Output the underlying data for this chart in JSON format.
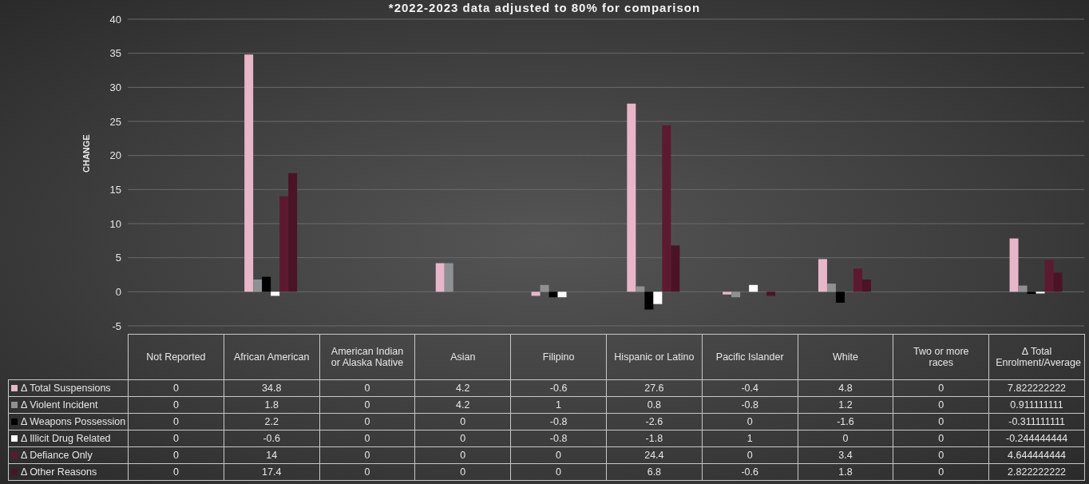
{
  "chart_data": {
    "type": "bar",
    "title": "*2022-2023 data adjusted to 80% for comparison",
    "ylabel": "CHANGE",
    "categories": [
      "Not Reported",
      "African American",
      "American Indian or Alaska Native",
      "Asian",
      "Filipino",
      "Hispanic or Latino",
      "Pacific Islander",
      "White",
      "Two or more races",
      "Δ Total Enrolment/Average"
    ],
    "series": [
      {
        "name": "Δ Total Suspensions",
        "color": "#e8b6c9",
        "values": [
          0,
          34.8,
          0,
          4.2,
          -0.6,
          27.6,
          -0.4,
          4.8,
          0,
          7.822222222
        ]
      },
      {
        "name": "Δ Violent Incident",
        "color": "#8e9193",
        "values": [
          0,
          1.8,
          0,
          4.2,
          1,
          0.8,
          -0.8,
          1.2,
          0,
          0.911111111
        ]
      },
      {
        "name": "Δ Weapons Possession",
        "color": "#000000",
        "values": [
          0,
          2.2,
          0,
          0,
          -0.8,
          -2.6,
          0,
          -1.6,
          0,
          -0.311111111
        ]
      },
      {
        "name": "Δ Illicit Drug Related",
        "color": "#ffffff",
        "values": [
          0,
          -0.6,
          0,
          0,
          -0.8,
          -1.8,
          1,
          0,
          0,
          -0.244444444
        ]
      },
      {
        "name": "Δ Defiance Only",
        "color": "#5c1a30",
        "values": [
          0,
          14,
          0,
          0,
          0,
          24.4,
          0,
          3.4,
          0,
          4.644444444
        ]
      },
      {
        "name": "Δ Other Reasons",
        "color": "#4a1426",
        "values": [
          0,
          17.4,
          0,
          0,
          0,
          6.8,
          -0.6,
          1.8,
          0,
          2.822222222
        ]
      }
    ],
    "ylim": [
      -5,
      40
    ],
    "yticks": [
      -5,
      0,
      5,
      10,
      15,
      20,
      25,
      30,
      35,
      40
    ],
    "grid": "y",
    "legend": "bottom",
    "data_labels": true
  }
}
